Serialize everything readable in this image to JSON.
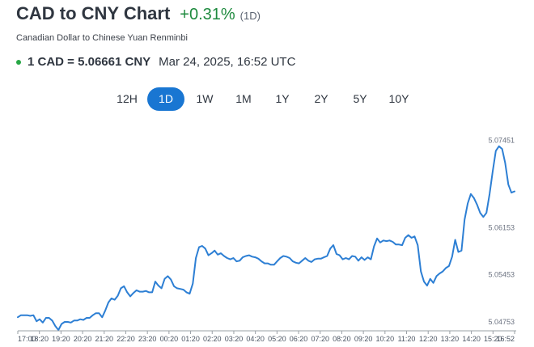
{
  "header": {
    "title": "CAD to CNY Chart",
    "change": "+0.31%",
    "period": "(1D)",
    "subtitle": "Canadian Dollar to Chinese Yuan Renminbi",
    "rate": "1 CAD = 5.06661 CNY",
    "timestamp": "Mar 24, 2025, 16:52 UTC"
  },
  "ranges": [
    {
      "label": "12H",
      "active": false
    },
    {
      "label": "1D",
      "active": true
    },
    {
      "label": "1W",
      "active": false
    },
    {
      "label": "1M",
      "active": false
    },
    {
      "label": "1Y",
      "active": false
    },
    {
      "label": "2Y",
      "active": false
    },
    {
      "label": "5Y",
      "active": false
    },
    {
      "label": "10Y",
      "active": false
    }
  ],
  "colors": {
    "line": "#2d7fd4",
    "accent": "#1976d2",
    "positive": "#1e8a3e"
  },
  "chart_data": {
    "type": "line",
    "x_tick_labels": [
      "17:00",
      "18:20",
      "19:20",
      "20:20",
      "21:20",
      "22:20",
      "23:20",
      "00:20",
      "01:20",
      "02:20",
      "03:20",
      "04:20",
      "05:20",
      "06:20",
      "07:20",
      "08:20",
      "09:20",
      "10:20",
      "11:20",
      "12:20",
      "13:20",
      "14:20",
      "15:20",
      "16:52"
    ],
    "y_tick_labels": [
      "5.07451",
      "5.06153",
      "5.05453",
      "5.04753"
    ],
    "y_ticks": [
      5.07451,
      5.06153,
      5.05453,
      5.04753
    ],
    "ylim": [
      5.0462,
      5.076
    ],
    "series": [
      {
        "values": [
          5.0481,
          5.0484,
          5.0484,
          5.0484,
          5.0483,
          5.0484,
          5.0475,
          5.0478,
          5.0473,
          5.048,
          5.048,
          5.0476,
          5.0468,
          5.0462,
          5.0471,
          5.0474,
          5.0474,
          5.0473,
          5.0476,
          5.0476,
          5.0478,
          5.0477,
          5.048,
          5.048,
          5.0484,
          5.0487,
          5.0487,
          5.0481,
          5.0491,
          5.0503,
          5.0509,
          5.0507,
          5.0513,
          5.0524,
          5.0527,
          5.0518,
          5.0512,
          5.0517,
          5.0521,
          5.0519,
          5.0519,
          5.052,
          5.0518,
          5.0518,
          5.0534,
          5.0528,
          5.0524,
          5.0538,
          5.0542,
          5.0537,
          5.0527,
          5.0524,
          5.0523,
          5.0522,
          5.0518,
          5.0516,
          5.0531,
          5.0569,
          5.0585,
          5.0587,
          5.0583,
          5.0573,
          5.0576,
          5.058,
          5.0574,
          5.0576,
          5.0572,
          5.0569,
          5.0567,
          5.0569,
          5.0564,
          5.0565,
          5.057,
          5.0572,
          5.0573,
          5.0571,
          5.057,
          5.0568,
          5.0564,
          5.0561,
          5.0561,
          5.0559,
          5.0559,
          5.0564,
          5.0569,
          5.0572,
          5.0571,
          5.0569,
          5.0564,
          5.0562,
          5.0561,
          5.0565,
          5.0569,
          5.0565,
          5.0563,
          5.0567,
          5.0568,
          5.0568,
          5.057,
          5.0572,
          5.0583,
          5.0588,
          5.0575,
          5.0573,
          5.0567,
          5.0569,
          5.0567,
          5.0572,
          5.0571,
          5.0565,
          5.057,
          5.0566,
          5.057,
          5.0567,
          5.0586,
          5.0598,
          5.0592,
          5.0595,
          5.0594,
          5.0595,
          5.0593,
          5.0589,
          5.0589,
          5.0588,
          5.0599,
          5.0603,
          5.0599,
          5.0601,
          5.0588,
          5.0549,
          5.0534,
          5.0528,
          5.0538,
          5.0532,
          5.0542,
          5.0546,
          5.0549,
          5.0554,
          5.0557,
          5.0571,
          5.0596,
          5.0578,
          5.058,
          5.0626,
          5.065,
          5.0664,
          5.0658,
          5.0648,
          5.0636,
          5.063,
          5.0636,
          5.0664,
          5.0698,
          5.0728,
          5.0735,
          5.0731,
          5.071,
          5.0678,
          5.0666,
          5.0668
        ]
      }
    ],
    "grid": false,
    "legend": "none"
  }
}
